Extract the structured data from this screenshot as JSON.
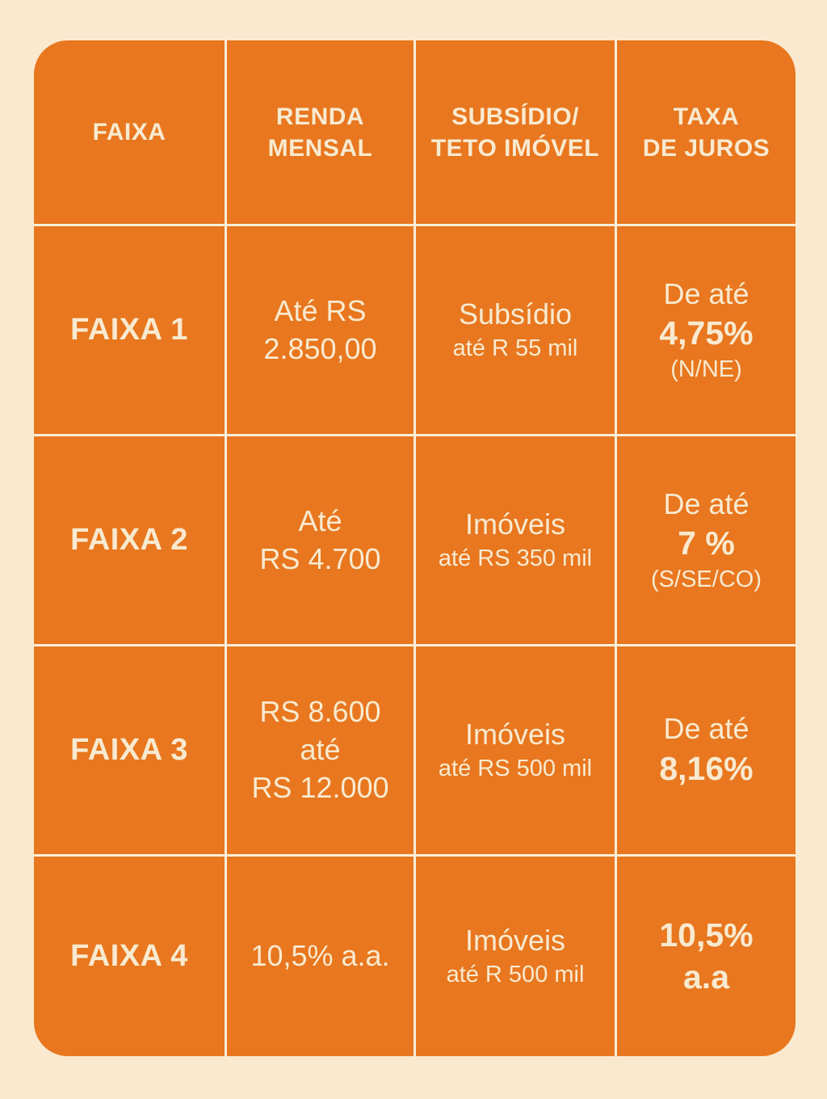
{
  "colors": {
    "page_background": "#FAE9CE",
    "cell_background": "#E8771F",
    "grid_gap": "#F9EEDA",
    "text": "#F8EAD0"
  },
  "table": {
    "headers": {
      "faixa": [
        "FAIXA"
      ],
      "renda": [
        "RENDA",
        "MENSAL"
      ],
      "subsidio": [
        "SUBSÍDIO/",
        "TETO IMÓVEL"
      ],
      "juros": [
        "TAXA",
        "DE JUROS"
      ]
    },
    "rows": [
      {
        "faixa": "FAIXA 1",
        "renda_mensal": [
          "Até RS",
          "2.850,00"
        ],
        "subsidio_teto": {
          "main": "Subsídio",
          "sub": "até R 55 mil"
        },
        "taxa_juros": {
          "pre": "De até",
          "rate": "4,75%",
          "note": "(N/NE)"
        }
      },
      {
        "faixa": "FAIXA 2",
        "renda_mensal": [
          "Até",
          "RS 4.700"
        ],
        "subsidio_teto": {
          "main": "Imóveis",
          "sub": "até RS 350 mil"
        },
        "taxa_juros": {
          "pre": "De até",
          "rate": "7 %",
          "note": "(S/SE/CO)"
        }
      },
      {
        "faixa": "FAIXA 3",
        "renda_mensal": [
          "RS 8.600",
          "até",
          "RS 12.000"
        ],
        "subsidio_teto": {
          "main": "Imóveis",
          "sub": "até RS 500 mil"
        },
        "taxa_juros": {
          "pre": "De até",
          "rate": "8,16%",
          "note": ""
        }
      },
      {
        "faixa": "FAIXA 4",
        "renda_mensal": [
          "10,5% a.a."
        ],
        "subsidio_teto": {
          "main": "Imóveis",
          "sub": "até R 500 mil"
        },
        "taxa_juros": {
          "pre": "",
          "rate": "10,5%",
          "rate2": "a.a",
          "note": ""
        }
      }
    ]
  },
  "chart_data": {
    "type": "table",
    "title": "",
    "columns": [
      "FAIXA",
      "RENDA MENSAL",
      "SUBSÍDIO/TETO IMÓVEL",
      "TAXA DE JUROS"
    ],
    "rows": [
      [
        "FAIXA 1",
        "Até RS 2.850,00",
        "Subsídio até R 55 mil",
        "De até 4,75% (N/NE)"
      ],
      [
        "FAIXA 2",
        "Até RS 4.700",
        "Imóveis até RS 350 mil",
        "De até 7 % (S/SE/CO)"
      ],
      [
        "FAIXA 3",
        "RS 8.600 até RS 12.000",
        "Imóveis até RS 500 mil",
        "De até 8,16%"
      ],
      [
        "FAIXA 4",
        "10,5% a.a.",
        "Imóveis até R 500 mil",
        "10,5% a.a"
      ]
    ]
  }
}
